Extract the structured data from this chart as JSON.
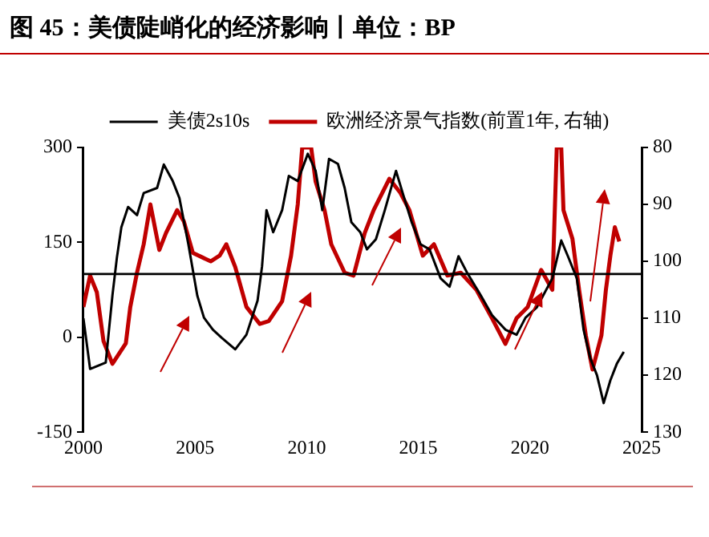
{
  "chart_data": {
    "type": "line",
    "title": "图 45：美债陡峭化的经济影响丨单位：BP",
    "legend": "top",
    "xlim": [
      2000,
      2025
    ],
    "xticks": [
      2000,
      2005,
      2010,
      2015,
      2020,
      2025
    ],
    "ylim": [
      -150,
      300
    ],
    "yticks": [
      -150,
      0,
      150,
      300
    ],
    "y2lim": [
      130,
      80
    ],
    "y2ticks": [
      80,
      90,
      100,
      110,
      120,
      130
    ],
    "ref_lines": [
      {
        "axis": "y",
        "value": 100,
        "color": "#000000"
      }
    ],
    "series": [
      {
        "name": "美债2s10s",
        "color": "#000000",
        "x": [
          2000.0,
          2000.3,
          2001.0,
          2001.3,
          2001.5,
          2001.7,
          2002.0,
          2002.4,
          2002.7,
          2003.3,
          2003.6,
          2004.0,
          2004.3,
          2004.7,
          2005.1,
          2005.4,
          2005.8,
          2006.2,
          2006.8,
          2007.3,
          2007.8,
          2008.0,
          2008.2,
          2008.5,
          2008.9,
          2009.2,
          2009.6,
          2010.05,
          2010.4,
          2010.7,
          2011.0,
          2011.4,
          2011.7,
          2012.0,
          2012.4,
          2012.7,
          2013.1,
          2013.5,
          2014.0,
          2014.3,
          2014.7,
          2015.1,
          2015.5,
          2016.0,
          2016.4,
          2016.8,
          2017.2,
          2017.8,
          2018.3,
          2018.9,
          2019.4,
          2019.8,
          2020.3,
          2021.0,
          2021.4,
          2021.7,
          2022.1,
          2022.4,
          2022.7,
          2023.0,
          2023.3,
          2023.6,
          2023.9,
          2024.2
        ],
        "values": [
          30,
          -50,
          -40,
          66,
          126,
          174,
          206,
          193,
          228,
          236,
          273,
          247,
          220,
          147,
          66,
          31,
          12,
          -1,
          -19,
          4,
          58,
          112,
          201,
          166,
          201,
          255,
          247,
          290,
          263,
          201,
          282,
          274,
          236,
          182,
          166,
          139,
          155,
          201,
          263,
          228,
          182,
          147,
          139,
          93,
          80,
          128,
          101,
          66,
          35,
          12,
          4,
          31,
          47,
          93,
          153,
          128,
          93,
          12,
          -33,
          -60,
          -104,
          -68,
          -41,
          -23
        ]
      },
      {
        "name": "欧洲经济景气指数(前置1年, 右轴)",
        "color": "#c00000",
        "axis": "y2",
        "x": [
          2000.0,
          2000.3,
          2000.6,
          2000.9,
          2001.3,
          2001.9,
          2002.1,
          2002.4,
          2002.7,
          2003.0,
          2003.4,
          2003.7,
          2004.2,
          2004.5,
          2004.9,
          2005.7,
          2006.1,
          2006.4,
          2006.8,
          2007.3,
          2007.9,
          2008.3,
          2008.9,
          2009.3,
          2009.6,
          2009.8,
          2010.2,
          2010.4,
          2010.8,
          2011.1,
          2011.7,
          2012.1,
          2012.6,
          2013.0,
          2013.7,
          2014.2,
          2014.6,
          2015.2,
          2015.7,
          2016.3,
          2016.9,
          2017.6,
          2018.3,
          2018.9,
          2019.4,
          2019.9,
          2020.5,
          2021.0,
          2021.2,
          2021.4,
          2021.5,
          2021.9,
          2022.2,
          2022.5,
          2022.8,
          2023.2,
          2023.4,
          2023.6,
          2023.8,
          2024.0
        ],
        "values": [
          108,
          102.5,
          105.4,
          114,
          118,
          114.4,
          108,
          102,
          97,
          90,
          98,
          95,
          91,
          93,
          98.5,
          100,
          99,
          97,
          101,
          108,
          111,
          110.5,
          107,
          99,
          90,
          80,
          80,
          86,
          91,
          97,
          102,
          102.5,
          95,
          91,
          85.5,
          88,
          91,
          99,
          97,
          102.5,
          102,
          105,
          110,
          114.5,
          110,
          108,
          101.5,
          105,
          80,
          80,
          91,
          96,
          105,
          113,
          119,
          113,
          105,
          99,
          94,
          96.5
        ]
      }
    ]
  }
}
